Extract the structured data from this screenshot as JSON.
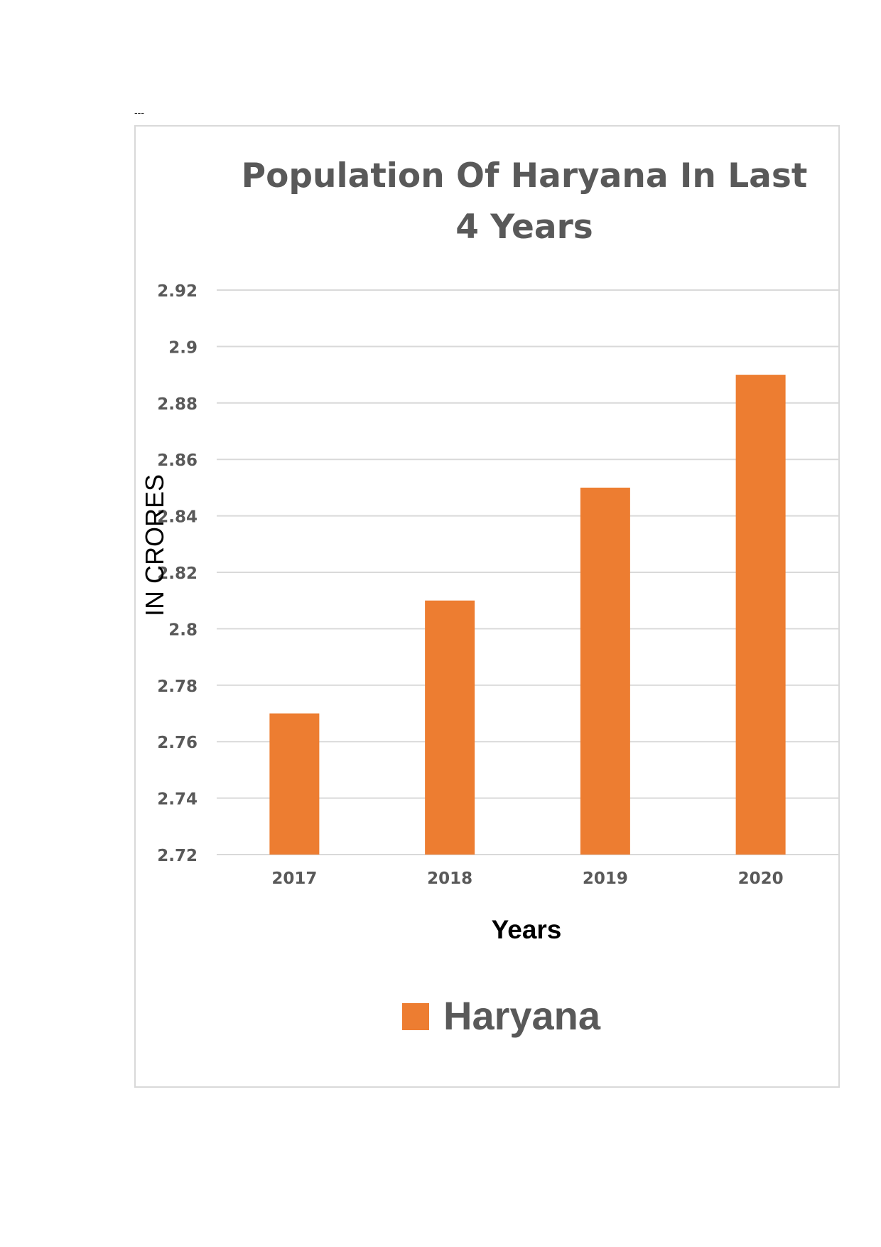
{
  "page_marker": "---",
  "chart_data": {
    "type": "bar",
    "title_line1": "Population Of Haryana In Last",
    "title_line2": "4 Years",
    "xlabel": "Years",
    "ylabel": "IN CRORES",
    "categories": [
      "2017",
      "2018",
      "2019",
      "2020"
    ],
    "series": [
      {
        "name": "Haryana",
        "values": [
          2.77,
          2.81,
          2.85,
          2.89
        ],
        "color": "#ED7D31"
      }
    ],
    "ylim": [
      2.72,
      2.92
    ],
    "yticks": [
      "2.92",
      "2.9",
      "2.88",
      "2.86",
      "2.84",
      "2.82",
      "2.8",
      "2.78",
      "2.76",
      "2.74",
      "2.72"
    ],
    "grid": true,
    "legend_position": "bottom",
    "colors": {
      "bar": "#ED7D31",
      "grid": "#d9d9d9",
      "text": "#595959",
      "axis_title": "#000000"
    }
  }
}
